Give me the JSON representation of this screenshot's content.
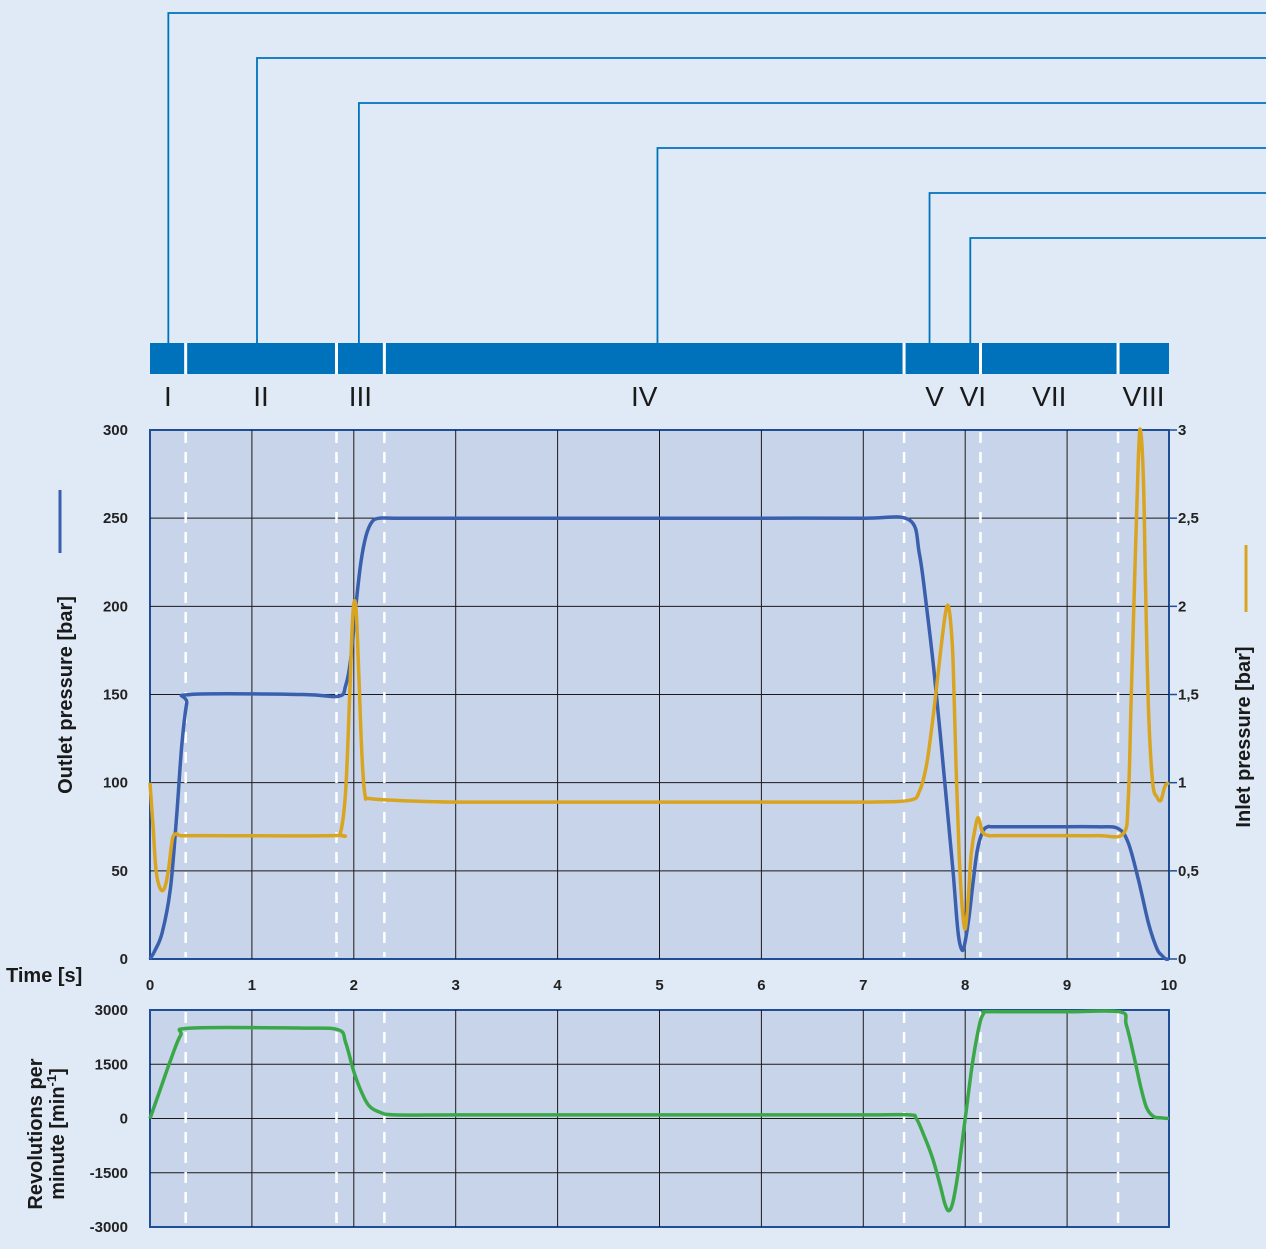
{
  "phases": [
    "I",
    "II",
    "III",
    "IV",
    "V",
    "VI",
    "VII",
    "VIII"
  ],
  "phase_boundaries_s": [
    0.35,
    1.83,
    2.3,
    7.4,
    8.15,
    9.5
  ],
  "phase_boundary_ticks_s": [
    2.0,
    8.0
  ],
  "callout_anchors_s": [
    0.18,
    1.05,
    2.05,
    4.98,
    7.65,
    8.05
  ],
  "colors": {
    "background": "#e0eaf6",
    "plot_bg": "#c8d4ea",
    "phase_bar": "#0072bc",
    "callout_lines": "#0072bc",
    "grid": "#1a1a1a",
    "divider": "#ffffff",
    "outlet": "#3a5fac",
    "inlet": "#d9a520",
    "rpm": "#3aa848"
  },
  "chart_data": [
    {
      "type": "line",
      "xlabel": "Time [s]",
      "ylabel": "Outlet pressure [bar]",
      "y2label": "Inlet pressure [bar]",
      "xlim": [
        0,
        10
      ],
      "ylim": [
        0,
        300
      ],
      "y2lim": [
        0,
        3
      ],
      "x_ticks": [
        "0",
        "1",
        "2",
        "3",
        "4",
        "5",
        "6",
        "7",
        "8",
        "9",
        "10"
      ],
      "y_ticks": [
        "300",
        "250",
        "200",
        "150",
        "100",
        "50",
        "0"
      ],
      "y2_ticks": [
        "3",
        "2,5",
        "2",
        "1,5",
        "1",
        "0,5",
        "0"
      ],
      "grid": true,
      "series": [
        {
          "name": "Outlet pressure [bar]",
          "axis": "left",
          "x": [
            0,
            0.05,
            0.12,
            0.2,
            0.26,
            0.31,
            0.36,
            0.4,
            1.5,
            1.85,
            1.92,
            1.97,
            2.02,
            2.07,
            2.12,
            2.18,
            2.25,
            2.4,
            3,
            4,
            5,
            6,
            7,
            7.45,
            7.55,
            7.62,
            7.7,
            7.8,
            7.88,
            7.93,
            7.97,
            8.0,
            8.04,
            8.08,
            8.12,
            8.17,
            8.22,
            8.3,
            8.8,
            9.3,
            9.5,
            9.6,
            9.7,
            9.8,
            9.88,
            9.93,
            9.97,
            10.0
          ],
          "y": [
            0,
            5,
            15,
            40,
            80,
            120,
            145,
            150,
            150,
            149,
            155,
            170,
            200,
            225,
            240,
            248,
            250,
            250,
            250,
            250,
            250,
            250,
            250,
            249,
            230,
            200,
            160,
            100,
            50,
            15,
            5,
            10,
            25,
            45,
            62,
            72,
            75,
            75,
            75,
            75,
            74,
            66,
            45,
            20,
            6,
            2,
            0,
            0
          ]
        },
        {
          "name": "Inlet pressure [bar]",
          "axis": "right",
          "x": [
            0,
            0.03,
            0.06,
            0.1,
            0.14,
            0.18,
            0.22,
            0.26,
            0.3,
            0.5,
            1.8,
            1.87,
            1.92,
            1.96,
            1.99,
            2.02,
            2.05,
            2.08,
            2.11,
            2.15,
            2.4,
            3,
            4,
            5,
            6,
            7,
            7.45,
            7.55,
            7.62,
            7.68,
            7.73,
            7.78,
            7.82,
            7.85,
            7.88,
            7.91,
            7.94,
            7.97,
            8.0,
            8.03,
            8.06,
            8.1,
            8.13,
            8.17,
            8.23,
            8.3,
            8.8,
            9.3,
            9.55,
            9.6,
            9.63,
            9.67,
            9.7,
            9.72,
            9.75,
            9.77,
            9.8,
            9.84,
            9.88,
            9.92,
            9.96,
            10.0
          ],
          "y": [
            1.0,
            0.75,
            0.5,
            0.4,
            0.4,
            0.5,
            0.68,
            0.71,
            0.7,
            0.7,
            0.7,
            0.72,
            0.95,
            1.5,
            1.95,
            2.0,
            1.6,
            1.15,
            0.93,
            0.91,
            0.9,
            0.89,
            0.89,
            0.89,
            0.89,
            0.89,
            0.9,
            0.95,
            1.1,
            1.35,
            1.6,
            1.85,
            2.0,
            1.95,
            1.7,
            1.1,
            0.6,
            0.3,
            0.17,
            0.35,
            0.6,
            0.75,
            0.8,
            0.72,
            0.7,
            0.7,
            0.7,
            0.7,
            0.71,
            0.9,
            1.5,
            2.3,
            2.85,
            3.0,
            2.7,
            2.1,
            1.4,
            1.0,
            0.92,
            0.9,
            0.98,
            1.0
          ]
        }
      ]
    },
    {
      "type": "line",
      "ylabel": "Revolutions per minute [min-1]",
      "ylabel_line1": "Revolutions per",
      "ylabel_line2": "minute [min",
      "ylabel_sup": "-1",
      "ylabel_close": "]",
      "xlim": [
        0,
        10
      ],
      "ylim": [
        -3000,
        3000
      ],
      "y_ticks": [
        "3000",
        "1500",
        "0",
        "-1500",
        "-3000"
      ],
      "grid": true,
      "series": [
        {
          "name": "Revolutions per minute",
          "x": [
            0,
            0.1,
            0.2,
            0.3,
            0.4,
            1.5,
            1.85,
            1.92,
            2.0,
            2.08,
            2.15,
            2.25,
            2.4,
            3,
            4,
            5,
            6,
            7,
            7.45,
            7.52,
            7.6,
            7.68,
            7.75,
            7.8,
            7.84,
            7.88,
            7.93,
            8.0,
            8.07,
            8.14,
            8.18,
            8.2,
            8.5,
            9.0,
            9.52,
            9.58,
            9.65,
            9.72,
            9.78,
            9.85,
            9.92,
            10.0
          ],
          "y": [
            0,
            800,
            1600,
            2300,
            2500,
            2500,
            2450,
            2100,
            1300,
            700,
            350,
            180,
            100,
            100,
            100,
            100,
            100,
            100,
            100,
            0,
            -500,
            -1100,
            -1800,
            -2350,
            -2550,
            -2300,
            -1500,
            0,
            1500,
            2600,
            2900,
            2950,
            2950,
            2950,
            2950,
            2600,
            1800,
            900,
            300,
            50,
            20,
            0
          ]
        }
      ]
    }
  ]
}
